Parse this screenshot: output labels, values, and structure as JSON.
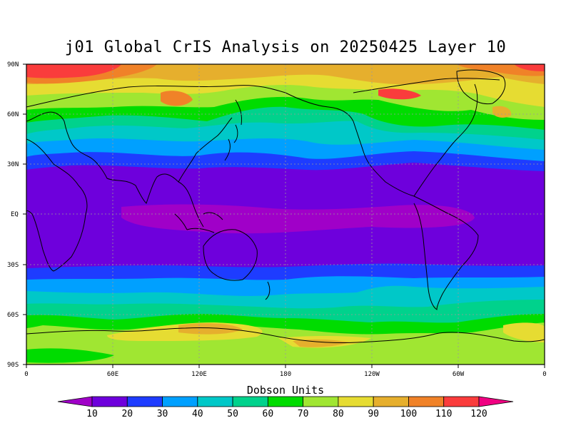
{
  "title": "j01 Global CrIS Analysis on 20250425 Layer 10",
  "lat_labels": [
    "90N",
    "60N",
    "30N",
    "EQ",
    "30S",
    "60S",
    "90S"
  ],
  "lon_labels": [
    "0",
    "60E",
    "120E",
    "180",
    "120W",
    "60W",
    "0"
  ],
  "colorbar": {
    "title": "Dobson Units",
    "levels": [
      "10",
      "20",
      "30",
      "40",
      "50",
      "60",
      "70",
      "80",
      "90",
      "100",
      "110",
      "120"
    ],
    "colors": [
      "#a000c8",
      "#6e00dc",
      "#1e3cff",
      "#00a0ff",
      "#00c8c8",
      "#00d28c",
      "#00dc00",
      "#a0e632",
      "#e6dc32",
      "#e6af2d",
      "#f08228",
      "#fa3c3c",
      "#f00082"
    ]
  },
  "field_colors": {
    "deep_purple": "#6e00dc",
    "magenta_band": "#a000c8",
    "blue": "#1e3cff",
    "cyan": "#00a0ff",
    "teal": "#00c8c8",
    "green_teal": "#00d28c",
    "green": "#00dc00",
    "light_green": "#a0e632",
    "yellow": "#e6dc32",
    "gold": "#e6af2d",
    "orange": "#f08228",
    "red": "#fa3c3c"
  }
}
